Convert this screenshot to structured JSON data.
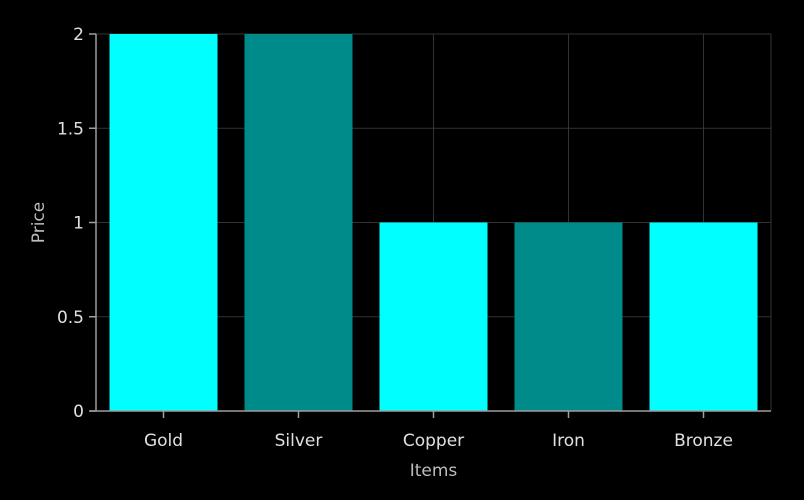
{
  "chart_data": {
    "type": "bar",
    "title": "",
    "xlabel": "Items",
    "ylabel": "Price",
    "categories": [
      "Gold",
      "Silver",
      "Copper",
      "Iron",
      "Bronze"
    ],
    "values": [
      2,
      2,
      1,
      1,
      1
    ],
    "ylim": [
      0,
      2
    ],
    "yticks": [
      "0",
      "0.5",
      "1",
      "1.5",
      "2"
    ],
    "grid": true,
    "legend": "none",
    "colors": {
      "background": "#000000",
      "bar_alternating": [
        "#00ffff",
        "#008b8b"
      ],
      "grid": "#333333",
      "axis": "#9e9e9e",
      "text": "#e0e0e0"
    }
  }
}
